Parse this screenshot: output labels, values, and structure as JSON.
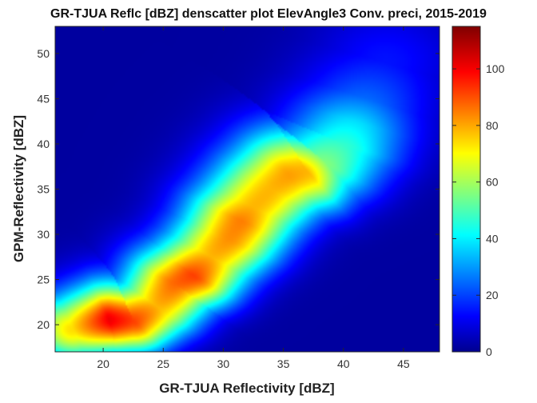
{
  "chart_data": {
    "type": "heatmap",
    "title": "GR-TJUA Reflc [dBZ] denscatter plot ElevAngle3 Conv. preci, 2015-2019",
    "xlabel": "GR-TJUA Reflectivity [dBZ]",
    "ylabel": "GPM-Reflectivity [dBZ]",
    "xlim": [
      16,
      48
    ],
    "ylim": [
      17,
      53
    ],
    "xticks": [
      20,
      25,
      30,
      35,
      40,
      45
    ],
    "yticks": [
      20,
      25,
      30,
      35,
      40,
      45,
      50
    ],
    "grid": false,
    "colormap": "jet",
    "colorbar": {
      "min": 0,
      "max": 115,
      "ticks": [
        0,
        20,
        40,
        60,
        80,
        100
      ]
    },
    "density_ridge": {
      "description_points": [
        {
          "x": 17.5,
          "y": 19.5,
          "density": 80
        },
        {
          "x": 20.5,
          "y": 20.5,
          "density": 110
        },
        {
          "x": 22.5,
          "y": 20.5,
          "density": 100
        },
        {
          "x": 24.5,
          "y": 22.0,
          "density": 85
        },
        {
          "x": 26.0,
          "y": 24.5,
          "density": 95
        },
        {
          "x": 27.5,
          "y": 25.5,
          "density": 100
        },
        {
          "x": 29.0,
          "y": 27.5,
          "density": 85
        },
        {
          "x": 30.5,
          "y": 29.5,
          "density": 90
        },
        {
          "x": 31.5,
          "y": 31.5,
          "density": 92
        },
        {
          "x": 32.5,
          "y": 33.0,
          "density": 85
        },
        {
          "x": 34.0,
          "y": 35.0,
          "density": 85
        },
        {
          "x": 35.5,
          "y": 36.5,
          "density": 88
        },
        {
          "x": 37.0,
          "y": 37.0,
          "density": 85
        },
        {
          "x": 38.5,
          "y": 38.0,
          "density": 60
        },
        {
          "x": 40.0,
          "y": 40.0,
          "density": 50
        },
        {
          "x": 41.0,
          "y": 42.5,
          "density": 40
        },
        {
          "x": 42.0,
          "y": 45.0,
          "density": 25
        },
        {
          "x": 43.5,
          "y": 49.0,
          "density": 14
        }
      ]
    }
  }
}
